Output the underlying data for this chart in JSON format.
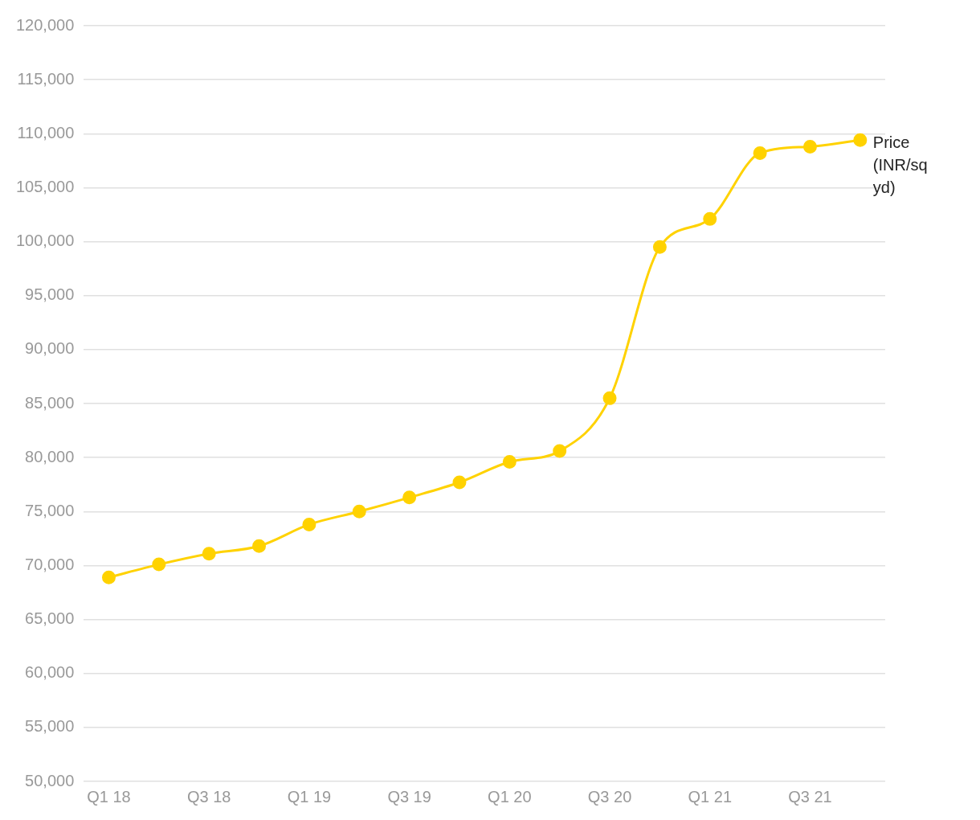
{
  "chart_data": {
    "type": "line",
    "categories": [
      "Q1 18",
      null,
      "Q3 18",
      null,
      "Q1 19",
      null,
      "Q3 19",
      null,
      "Q1 20",
      null,
      "Q3 20",
      null,
      "Q1 21",
      null,
      "Q3 21",
      null
    ],
    "series": [
      {
        "name": "Price (INR/sq yd)",
        "color": "#ffd200",
        "values": [
          68900,
          70100,
          71100,
          71800,
          73800,
          75000,
          76300,
          77700,
          79600,
          80600,
          85500,
          99500,
          102100,
          108200,
          108800,
          109400
        ]
      }
    ],
    "ylim": [
      50000,
      120000
    ],
    "yticks": [
      {
        "value": 50000,
        "label": "50,000"
      },
      {
        "value": 55000,
        "label": "55,000"
      },
      {
        "value": 60000,
        "label": "60,000"
      },
      {
        "value": 65000,
        "label": "65,000"
      },
      {
        "value": 70000,
        "label": "70,000"
      },
      {
        "value": 75000,
        "label": "75,000"
      },
      {
        "value": 80000,
        "label": "80,000"
      },
      {
        "value": 85000,
        "label": "85,000"
      },
      {
        "value": 90000,
        "label": "90,000"
      },
      {
        "value": 95000,
        "label": "95,000"
      },
      {
        "value": 100000,
        "label": "100,000"
      },
      {
        "value": 105000,
        "label": "105,000"
      },
      {
        "value": 110000,
        "label": "110,000"
      },
      {
        "value": 115000,
        "label": "115,000"
      },
      {
        "value": 120000,
        "label": "120,000"
      }
    ],
    "grid": "y",
    "legend": false,
    "marker": "circle",
    "line_style": "solid"
  }
}
